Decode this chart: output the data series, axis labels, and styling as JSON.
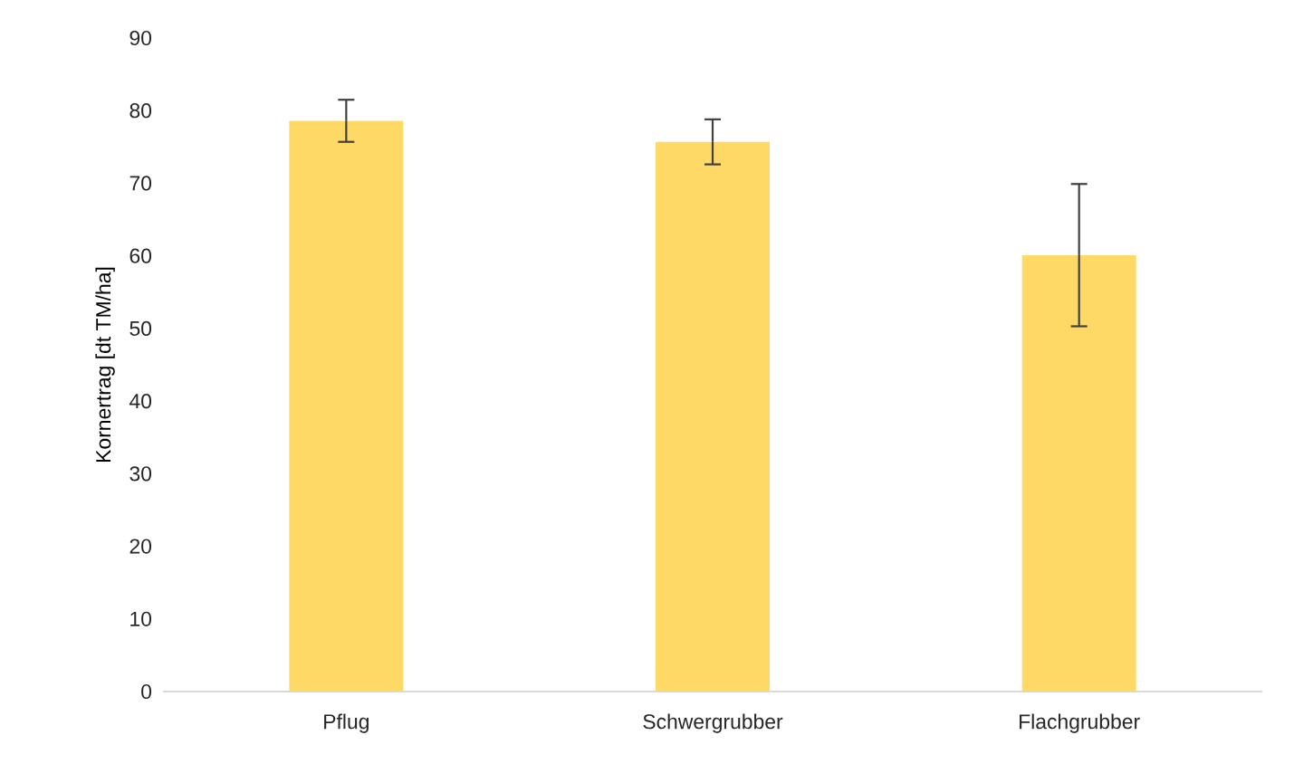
{
  "chart_data": {
    "type": "bar",
    "ylabel": "Kornertrag [dt TM/ha]",
    "categories": [
      "Pflug",
      "Schwergrubber",
      "Flachgrubber"
    ],
    "values": [
      78.6,
      75.7,
      60.1
    ],
    "errors": [
      2.9,
      3.1,
      9.8
    ],
    "color": "#ffd966",
    "ylim": [
      0,
      90
    ],
    "yticks": [
      0,
      10,
      20,
      30,
      40,
      50,
      60,
      70,
      80,
      90
    ]
  }
}
